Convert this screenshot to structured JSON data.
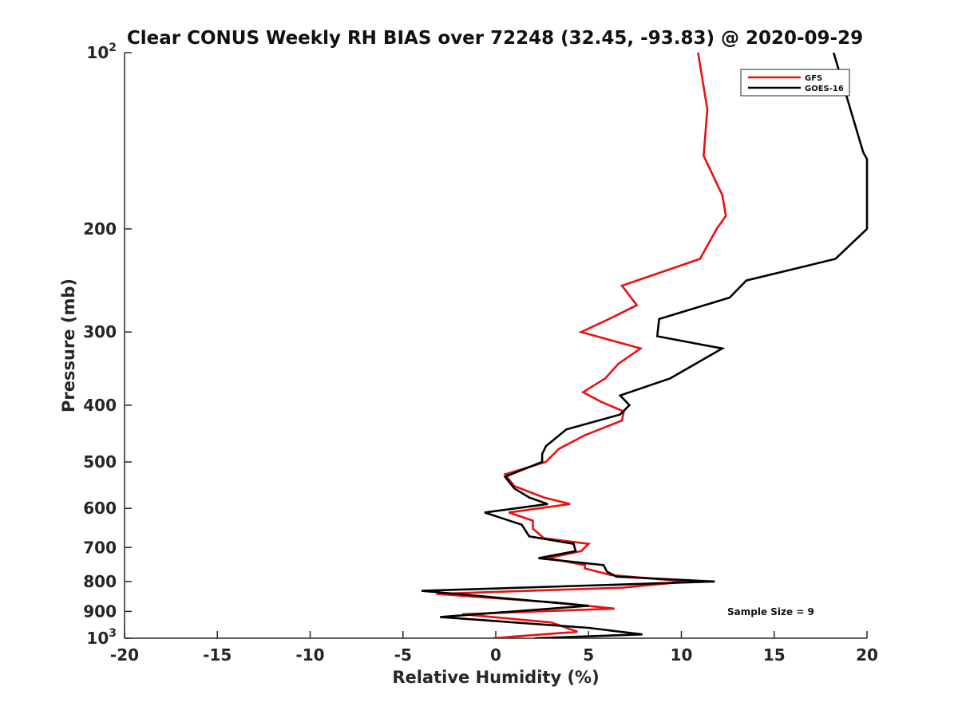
{
  "chart_data": {
    "type": "line",
    "title": "Clear CONUS Weekly RH BIAS over 72248 (32.45, -93.83) @ 2020-09-29",
    "xlabel": "Relative Humidity (%)",
    "ylabel": "Pressure (mb)",
    "xlim": [
      -20,
      20
    ],
    "ylim": [
      100,
      1000
    ],
    "yscale": "log",
    "yreversed": true,
    "grid": false,
    "legend_position": "top-right",
    "x_ticks": [
      {
        "value": -20,
        "label": "-20"
      },
      {
        "value": -15,
        "label": "-15"
      },
      {
        "value": -10,
        "label": "-10"
      },
      {
        "value": -5,
        "label": "-5"
      },
      {
        "value": 0,
        "label": "0"
      },
      {
        "value": 5,
        "label": "5"
      },
      {
        "value": 10,
        "label": "10"
      },
      {
        "value": 15,
        "label": "15"
      },
      {
        "value": 20,
        "label": "20"
      }
    ],
    "y_ticks": [
      {
        "value": 100,
        "base": "10",
        "exp": "2"
      },
      {
        "value": 200,
        "label": "200"
      },
      {
        "value": 300,
        "label": "300"
      },
      {
        "value": 400,
        "label": "400"
      },
      {
        "value": 500,
        "label": "500"
      },
      {
        "value": 600,
        "label": "600"
      },
      {
        "value": 700,
        "label": "700"
      },
      {
        "value": 800,
        "label": "800"
      },
      {
        "value": 900,
        "label": "900"
      },
      {
        "value": 1000,
        "base": "10",
        "exp": "3"
      }
    ],
    "annotation": "Sample Size = 9",
    "series": [
      {
        "name": "GFS",
        "color": "#e8110f",
        "points": [
          {
            "x": 10.9,
            "p": 100
          },
          {
            "x": 11.4,
            "p": 125
          },
          {
            "x": 11.2,
            "p": 150
          },
          {
            "x": 12.2,
            "p": 175
          },
          {
            "x": 12.4,
            "p": 190
          },
          {
            "x": 11.9,
            "p": 200
          },
          {
            "x": 11.0,
            "p": 225
          },
          {
            "x": 6.8,
            "p": 250
          },
          {
            "x": 7.6,
            "p": 270
          },
          {
            "x": 6.1,
            "p": 285
          },
          {
            "x": 4.6,
            "p": 300
          },
          {
            "x": 7.8,
            "p": 320
          },
          {
            "x": 6.6,
            "p": 340
          },
          {
            "x": 5.9,
            "p": 360
          },
          {
            "x": 4.7,
            "p": 380
          },
          {
            "x": 5.7,
            "p": 395
          },
          {
            "x": 6.9,
            "p": 410
          },
          {
            "x": 6.8,
            "p": 425
          },
          {
            "x": 4.8,
            "p": 450
          },
          {
            "x": 3.4,
            "p": 475
          },
          {
            "x": 2.7,
            "p": 500
          },
          {
            "x": 0.5,
            "p": 525
          },
          {
            "x": 1.0,
            "p": 550
          },
          {
            "x": 2.6,
            "p": 575
          },
          {
            "x": 4.0,
            "p": 590
          },
          {
            "x": 0.7,
            "p": 610
          },
          {
            "x": 2.0,
            "p": 630
          },
          {
            "x": 2.0,
            "p": 650
          },
          {
            "x": 2.6,
            "p": 675
          },
          {
            "x": 5.0,
            "p": 690
          },
          {
            "x": 4.6,
            "p": 710
          },
          {
            "x": 2.8,
            "p": 730
          },
          {
            "x": 4.8,
            "p": 750
          },
          {
            "x": 4.8,
            "p": 760
          },
          {
            "x": 6.2,
            "p": 780
          },
          {
            "x": 10.3,
            "p": 800
          },
          {
            "x": 6.8,
            "p": 820
          },
          {
            "x": -3.2,
            "p": 840
          },
          {
            "x": 3.4,
            "p": 870
          },
          {
            "x": 6.4,
            "p": 890
          },
          {
            "x": -1.8,
            "p": 910
          },
          {
            "x": 3.0,
            "p": 940
          },
          {
            "x": 4.4,
            "p": 975
          },
          {
            "x": -0.2,
            "p": 1000
          }
        ]
      },
      {
        "name": "GOES-16",
        "color": "#000000",
        "points": [
          {
            "x": 18.2,
            "p": 100
          },
          {
            "x": 19.8,
            "p": 148
          },
          {
            "x": 20.0,
            "p": 152
          },
          {
            "x": 20.0,
            "p": 200
          },
          {
            "x": 18.3,
            "p": 225
          },
          {
            "x": 13.5,
            "p": 245
          },
          {
            "x": 12.6,
            "p": 262
          },
          {
            "x": 8.8,
            "p": 285
          },
          {
            "x": 8.7,
            "p": 305
          },
          {
            "x": 12.2,
            "p": 320
          },
          {
            "x": 9.4,
            "p": 360
          },
          {
            "x": 6.7,
            "p": 385
          },
          {
            "x": 7.2,
            "p": 400
          },
          {
            "x": 6.7,
            "p": 415
          },
          {
            "x": 3.8,
            "p": 440
          },
          {
            "x": 2.7,
            "p": 470
          },
          {
            "x": 2.5,
            "p": 485
          },
          {
            "x": 2.5,
            "p": 500
          },
          {
            "x": 0.5,
            "p": 530
          },
          {
            "x": 1.0,
            "p": 555
          },
          {
            "x": 1.8,
            "p": 575
          },
          {
            "x": 2.8,
            "p": 590
          },
          {
            "x": -0.6,
            "p": 610
          },
          {
            "x": 1.4,
            "p": 640
          },
          {
            "x": 1.8,
            "p": 670
          },
          {
            "x": 4.2,
            "p": 690
          },
          {
            "x": 4.3,
            "p": 710
          },
          {
            "x": 2.3,
            "p": 730
          },
          {
            "x": 5.8,
            "p": 750
          },
          {
            "x": 6.0,
            "p": 770
          },
          {
            "x": 6.5,
            "p": 785
          },
          {
            "x": 11.8,
            "p": 800
          },
          {
            "x": -4.0,
            "p": 830
          },
          {
            "x": 5.0,
            "p": 880
          },
          {
            "x": -3.0,
            "p": 920
          },
          {
            "x": 5.0,
            "p": 960
          },
          {
            "x": 7.9,
            "p": 985
          },
          {
            "x": 2.1,
            "p": 1000
          }
        ]
      }
    ]
  }
}
